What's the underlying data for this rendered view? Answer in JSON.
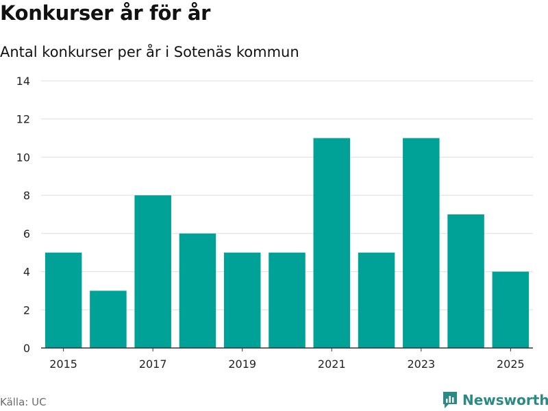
{
  "header": {
    "title": "Konkurser år för år",
    "subtitle": "Antal konkurser per år i Sotenäs kommun"
  },
  "footer": {
    "source": "Källa: UC",
    "brand": "Newsworthy"
  },
  "colors": {
    "bar": "#00a298",
    "grid": "#dddddd",
    "axis": "#333333",
    "brand": "#2c8a84"
  },
  "chart_data": {
    "type": "bar",
    "title": "Konkurser år för år",
    "subtitle": "Antal konkurser per år i Sotenäs kommun",
    "xlabel": "",
    "ylabel": "",
    "categories": [
      2015,
      2016,
      2017,
      2018,
      2019,
      2020,
      2021,
      2022,
      2023,
      2024,
      2025
    ],
    "values": [
      5,
      3,
      8,
      6,
      5,
      5,
      11,
      5,
      11,
      7,
      4
    ],
    "ylim": [
      0,
      14
    ],
    "yticks": [
      0,
      2,
      4,
      6,
      8,
      10,
      12,
      14
    ],
    "xtick_labels": [
      "2015",
      "2017",
      "2019",
      "2021",
      "2023",
      "2025"
    ],
    "grid": true
  }
}
